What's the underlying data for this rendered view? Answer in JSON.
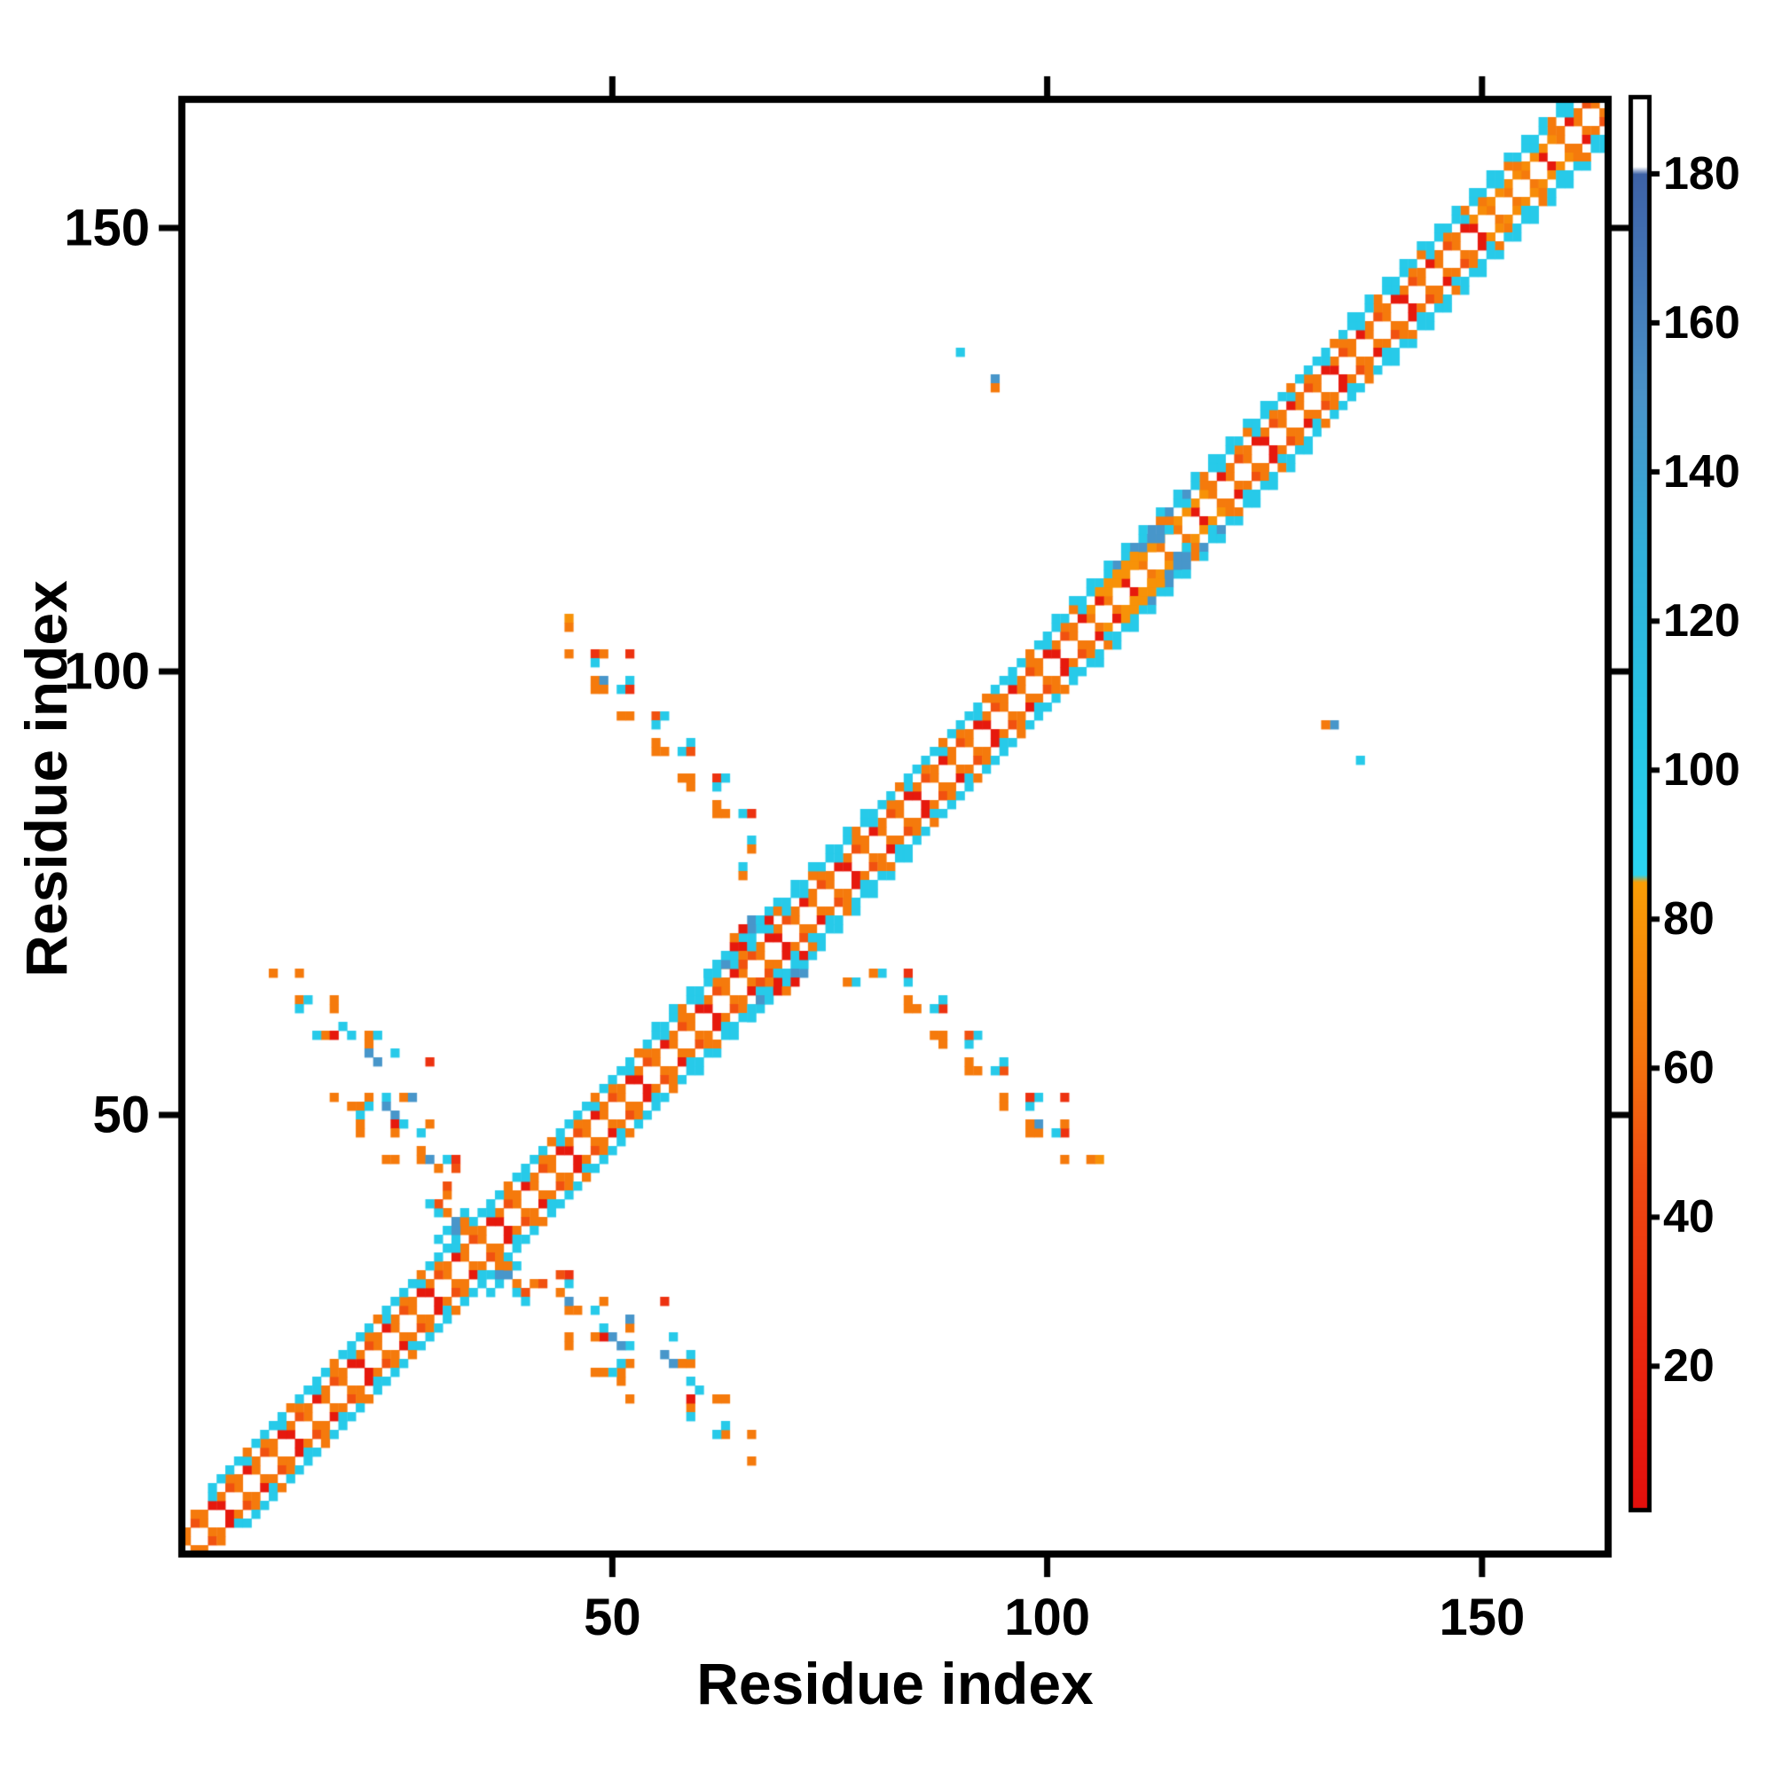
{
  "figure": {
    "x_axis_title": "Residue index",
    "y_axis_title": "Residue index"
  },
  "chart_data": {
    "type": "heatmap",
    "subtype": "protein-contact-map",
    "title": "",
    "xlabel": "Residue index",
    "ylabel": "Residue index",
    "x_range": [
      1,
      164
    ],
    "y_range": [
      1,
      164
    ],
    "x_ticks": [
      50,
      100,
      150
    ],
    "y_ticks": [
      50,
      100,
      150
    ],
    "grid": false,
    "legend_position": "none",
    "symmetric": true,
    "background_color": "#ffffff",
    "axis_color": "#000000",
    "colorbar": {
      "range": [
        1,
        190
      ],
      "ticks": [
        20,
        40,
        60,
        80,
        100,
        120,
        140,
        160,
        180
      ]
    },
    "colormap_stops": [
      [
        1,
        "#e30f0c"
      ],
      [
        25,
        "#ec2a0f"
      ],
      [
        45,
        "#f04911"
      ],
      [
        62,
        "#f4750d"
      ],
      [
        85,
        "#f99e06"
      ],
      [
        86,
        "#2bd4f1"
      ],
      [
        105,
        "#26c6e6"
      ],
      [
        130,
        "#31afd9"
      ],
      [
        150,
        "#4a93c8"
      ],
      [
        166,
        "#4377b7"
      ],
      [
        180,
        "#3e62a6"
      ],
      [
        181,
        "#ffffff"
      ],
      [
        190,
        "#ffffff"
      ]
    ],
    "band": {
      "i_min": 1,
      "i_max": 163,
      "rules": [
        {
          "k": 1,
          "parity": 1,
          "cycle": [
            65,
            65,
            10,
            65
          ]
        },
        {
          "k": 2,
          "cycle": [
            10,
            65,
            48,
            65
          ],
          "overrides": [
            {
              "from": 105,
              "to": 118,
              "value": 78
            },
            {
              "from": 149,
              "to": 158,
              "value": 75
            }
          ]
        },
        {
          "k": 3,
          "parity": 0,
          "cycle": [
            100,
            65
          ]
        },
        {
          "k": 4,
          "min_i": 4,
          "cycle": [
            100,
            100,
            100,
            65,
            100
          ],
          "overrides": [
            {
              "from": 108,
              "to": 116,
              "parity": 0,
              "value": 148
            }
          ]
        },
        {
          "k": 5,
          "parity": 1,
          "value": 100,
          "segments": [
            [
              55,
              80
            ],
            [
              100,
              125
            ],
            [
              135,
              160
            ]
          ]
        }
      ]
    },
    "points_upper": [
      [
        11,
        66,
        65
      ],
      [
        14,
        66,
        65
      ],
      [
        14,
        63,
        65
      ],
      [
        15,
        63,
        100
      ],
      [
        14,
        62,
        100
      ],
      [
        18,
        63,
        65
      ],
      [
        18,
        62,
        65
      ],
      [
        19,
        60,
        100
      ],
      [
        17,
        59,
        65
      ],
      [
        18,
        59,
        10
      ],
      [
        20,
        59,
        100
      ],
      [
        22,
        59,
        65
      ],
      [
        23,
        59,
        100
      ],
      [
        22,
        58,
        65
      ],
      [
        22,
        57,
        148
      ],
      [
        23,
        56,
        148
      ],
      [
        25,
        57,
        100
      ],
      [
        29,
        56,
        30
      ],
      [
        16,
        59,
        100
      ],
      [
        18,
        52,
        65
      ],
      [
        22,
        52,
        65
      ],
      [
        24,
        52,
        100
      ],
      [
        26,
        52,
        65
      ],
      [
        27,
        52,
        148
      ],
      [
        20,
        51,
        65
      ],
      [
        21,
        51,
        65
      ],
      [
        22,
        51,
        100
      ],
      [
        21,
        50,
        100
      ],
      [
        21,
        49,
        65
      ],
      [
        21,
        48,
        65
      ],
      [
        24,
        51,
        148
      ],
      [
        25,
        50,
        148
      ],
      [
        25,
        49,
        10
      ],
      [
        26,
        49,
        100
      ],
      [
        25,
        48,
        65
      ],
      [
        28,
        48,
        100
      ],
      [
        29,
        49,
        65
      ],
      [
        24,
        45,
        65
      ],
      [
        25,
        45,
        65
      ],
      [
        28,
        45,
        65
      ],
      [
        28,
        46,
        65
      ],
      [
        29,
        45,
        148
      ],
      [
        31,
        45,
        100
      ],
      [
        32,
        45,
        30
      ],
      [
        30,
        44,
        65
      ],
      [
        32,
        44,
        48
      ],
      [
        30,
        36,
        100
      ],
      [
        31,
        37,
        100
      ],
      [
        32,
        37,
        148
      ],
      [
        32,
        38,
        148
      ],
      [
        31,
        39,
        65
      ],
      [
        30,
        39,
        100
      ],
      [
        31,
        41,
        65
      ],
      [
        30,
        40,
        48
      ],
      [
        33,
        38,
        65
      ],
      [
        33,
        39,
        100
      ],
      [
        31,
        42,
        48
      ],
      [
        29,
        40,
        100
      ],
      [
        45,
        106,
        78
      ],
      [
        45,
        105,
        65
      ],
      [
        45,
        102,
        65
      ],
      [
        48,
        102,
        30
      ],
      [
        49,
        102,
        65
      ],
      [
        48,
        101,
        100
      ],
      [
        52,
        102,
        30
      ],
      [
        48,
        99,
        65
      ],
      [
        49,
        99,
        148
      ],
      [
        48,
        98,
        65
      ],
      [
        49,
        98,
        65
      ],
      [
        51,
        98,
        100
      ],
      [
        52,
        99,
        100
      ],
      [
        52,
        98,
        30
      ],
      [
        51,
        95,
        65
      ],
      [
        52,
        95,
        65
      ],
      [
        55,
        95,
        48
      ],
      [
        56,
        95,
        100
      ],
      [
        55,
        94,
        100
      ],
      [
        55,
        92,
        65
      ],
      [
        55,
        91,
        65
      ],
      [
        56,
        91,
        65
      ],
      [
        58,
        91,
        100
      ],
      [
        59,
        92,
        100
      ],
      [
        59,
        91,
        48
      ],
      [
        58,
        88,
        65
      ],
      [
        59,
        88,
        65
      ],
      [
        59,
        87,
        65
      ],
      [
        62,
        88,
        30
      ],
      [
        63,
        88,
        100
      ],
      [
        62,
        87,
        100
      ],
      [
        62,
        85,
        65
      ],
      [
        62,
        84,
        65
      ],
      [
        63,
        84,
        65
      ],
      [
        65,
        84,
        100
      ],
      [
        66,
        84,
        30
      ],
      [
        66,
        81,
        100
      ],
      [
        66,
        80,
        65
      ],
      [
        65,
        78,
        100
      ],
      [
        65,
        77,
        65
      ],
      [
        61,
        66,
        100
      ],
      [
        62,
        67,
        100
      ],
      [
        63,
        67,
        148
      ],
      [
        63,
        68,
        100
      ],
      [
        64,
        68,
        100
      ],
      [
        64,
        69,
        10
      ],
      [
        65,
        69,
        10
      ],
      [
        65,
        68,
        65
      ],
      [
        66,
        69,
        100
      ],
      [
        66,
        70,
        100
      ],
      [
        66,
        71,
        148
      ],
      [
        66,
        72,
        148
      ],
      [
        67,
        72,
        100
      ],
      [
        64,
        70,
        65
      ],
      [
        65,
        71,
        10
      ],
      [
        68,
        72,
        10
      ],
      [
        68,
        73,
        100
      ],
      [
        69,
        73,
        65
      ],
      [
        70,
        73,
        100
      ],
      [
        65,
        67,
        48
      ],
      [
        106,
        108,
        10
      ],
      [
        106,
        109,
        78
      ],
      [
        107,
        110,
        78
      ],
      [
        108,
        110,
        78
      ],
      [
        108,
        111,
        78
      ],
      [
        109,
        111,
        78
      ],
      [
        109,
        112,
        78
      ],
      [
        110,
        112,
        78
      ],
      [
        110,
        113,
        78
      ],
      [
        111,
        113,
        78
      ],
      [
        111,
        114,
        148
      ],
      [
        112,
        114,
        78
      ],
      [
        112,
        115,
        148
      ],
      [
        113,
        115,
        148
      ],
      [
        113,
        116,
        148
      ],
      [
        114,
        116,
        100
      ],
      [
        90,
        136,
        100
      ],
      [
        94,
        133,
        148
      ],
      [
        94,
        132,
        65
      ]
    ]
  }
}
